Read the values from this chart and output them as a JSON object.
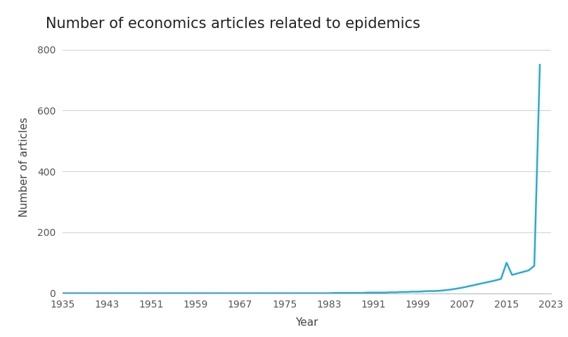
{
  "title": "Number of economics articles related to epidemics",
  "xlabel": "Year",
  "ylabel": "Number of articles",
  "line_color": "#29ABD4",
  "line_width": 1.8,
  "background_color": "#ffffff",
  "grid_color": "#d0d0d0",
  "title_fontsize": 15,
  "label_fontsize": 11,
  "tick_fontsize": 10,
  "ylim": [
    0,
    830
  ],
  "yticks": [
    0,
    200,
    400,
    600,
    800
  ],
  "xticks": [
    1935,
    1943,
    1951,
    1959,
    1967,
    1975,
    1983,
    1991,
    1999,
    2007,
    2015,
    2023
  ],
  "years": [
    1935,
    1936,
    1937,
    1938,
    1939,
    1940,
    1941,
    1942,
    1943,
    1944,
    1945,
    1946,
    1947,
    1948,
    1949,
    1950,
    1951,
    1952,
    1953,
    1954,
    1955,
    1956,
    1957,
    1958,
    1959,
    1960,
    1961,
    1962,
    1963,
    1964,
    1965,
    1966,
    1967,
    1968,
    1969,
    1970,
    1971,
    1972,
    1973,
    1974,
    1975,
    1976,
    1977,
    1978,
    1979,
    1980,
    1981,
    1982,
    1983,
    1984,
    1985,
    1986,
    1987,
    1988,
    1989,
    1990,
    1991,
    1992,
    1993,
    1994,
    1995,
    1996,
    1997,
    1998,
    1999,
    2000,
    2001,
    2002,
    2003,
    2004,
    2005,
    2006,
    2007,
    2008,
    2009,
    2010,
    2011,
    2012,
    2013,
    2014,
    2015,
    2016,
    2017,
    2018,
    2019,
    2020,
    2021
  ],
  "values": [
    0,
    0,
    0,
    0,
    0,
    0,
    0,
    0,
    0,
    0,
    0,
    0,
    0,
    0,
    0,
    0,
    0,
    0,
    0,
    0,
    0,
    0,
    0,
    0,
    0,
    0,
    0,
    0,
    0,
    0,
    0,
    0,
    0,
    0,
    0,
    0,
    0,
    0,
    0,
    0,
    0,
    0,
    0,
    0,
    0,
    0,
    0,
    0,
    0,
    1,
    1,
    1,
    1,
    1,
    1,
    2,
    2,
    2,
    2,
    3,
    3,
    4,
    4,
    5,
    5,
    6,
    7,
    7,
    8,
    10,
    12,
    15,
    18,
    22,
    26,
    30,
    34,
    38,
    42,
    47,
    100,
    60,
    65,
    70,
    75,
    90,
    750
  ]
}
